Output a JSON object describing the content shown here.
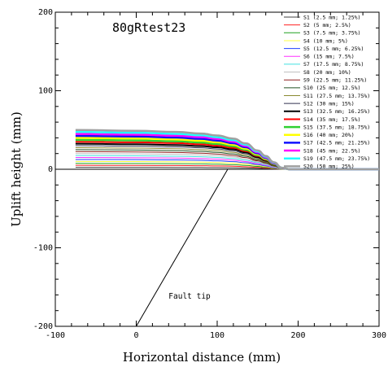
{
  "chart_data": {
    "type": "line",
    "title": "80gRtest23",
    "xlabel": "Horizontal distance (mm)",
    "ylabel": "Uplift height (mm)",
    "xlim": [
      -100,
      300
    ],
    "ylim": [
      -200,
      200
    ],
    "xticks": [
      -100,
      0,
      100,
      200,
      300
    ],
    "yticks": [
      -200,
      -100,
      0,
      100,
      200
    ],
    "grid": false,
    "legend_position": "top-right",
    "profile_x": [
      -75,
      0,
      50,
      80,
      100,
      120,
      135,
      150,
      160,
      170,
      180,
      190,
      300
    ],
    "profile_shape": [
      1.0,
      0.98,
      0.95,
      0.91,
      0.86,
      0.78,
      0.66,
      0.48,
      0.34,
      0.18,
      0.04,
      0.0,
      0.0
    ],
    "series": [
      {
        "name": "S1 (2.5 mm; 1.25%)",
        "color": "#404040",
        "width": 1.0,
        "max_height": 2.5
      },
      {
        "name": "S2 (5 mm; 2.5%)",
        "color": "#ff2020",
        "width": 1.0,
        "max_height": 5
      },
      {
        "name": "S3 (7.5 mm; 3.75%)",
        "color": "#20a020",
        "width": 1.0,
        "max_height": 7.5
      },
      {
        "name": "S4 (10 mm; 5%)",
        "color": "#ffff40",
        "width": 1.0,
        "max_height": 10
      },
      {
        "name": "S5 (12.5 mm; 6.25%)",
        "color": "#2040ff",
        "width": 1.0,
        "max_height": 12.5
      },
      {
        "name": "S6 (15 mm; 7.5%)",
        "color": "#ff30ff",
        "width": 1.0,
        "max_height": 15
      },
      {
        "name": "S7 (17.5 mm; 8.75%)",
        "color": "#40e0e0",
        "width": 1.0,
        "max_height": 17.5
      },
      {
        "name": "S8 (20 mm; 10%)",
        "color": "#c0c0c0",
        "width": 1.0,
        "max_height": 20
      },
      {
        "name": "S9 (22.5 mm; 11.25%)",
        "color": "#902020",
        "width": 1.0,
        "max_height": 22.5
      },
      {
        "name": "S10 (25 mm; 12.5%)",
        "color": "#205020",
        "width": 1.0,
        "max_height": 25
      },
      {
        "name": "S11 (27.5 mm; 13.75%)",
        "color": "#8a8a30",
        "width": 1.0,
        "max_height": 27.5
      },
      {
        "name": "S12 (30 mm; 15%)",
        "color": "#303050",
        "width": 1.0,
        "max_height": 30
      },
      {
        "name": "S13 (32.5 mm; 16.25%)",
        "color": "#000000",
        "width": 2.0,
        "max_height": 32.5
      },
      {
        "name": "S14 (35 mm; 17.5%)",
        "color": "#ff0000",
        "width": 2.0,
        "max_height": 35
      },
      {
        "name": "S15 (37.5 mm; 18.75%)",
        "color": "#30d030",
        "width": 2.5,
        "max_height": 37.5
      },
      {
        "name": "S16 (40 mm; 20%)",
        "color": "#ffff00",
        "width": 2.5,
        "max_height": 40
      },
      {
        "name": "S17 (42.5 mm; 21.25%)",
        "color": "#1010ff",
        "width": 2.5,
        "max_height": 42.5
      },
      {
        "name": "S18 (45 mm; 22.5%)",
        "color": "#ff00ff",
        "width": 2.5,
        "max_height": 45
      },
      {
        "name": "S19 (47.5 mm; 23.75%)",
        "color": "#20ffff",
        "width": 2.5,
        "max_height": 47.5
      },
      {
        "name": "S20 (50 mm; 25%)",
        "color": "#a0a0a0",
        "width": 2.5,
        "max_height": 50
      }
    ],
    "fault_line": {
      "x": [
        0,
        113
      ],
      "y": [
        -200,
        0
      ]
    },
    "annotations": [
      {
        "text": "Fault tip",
        "x": 40,
        "y": -165
      }
    ]
  }
}
